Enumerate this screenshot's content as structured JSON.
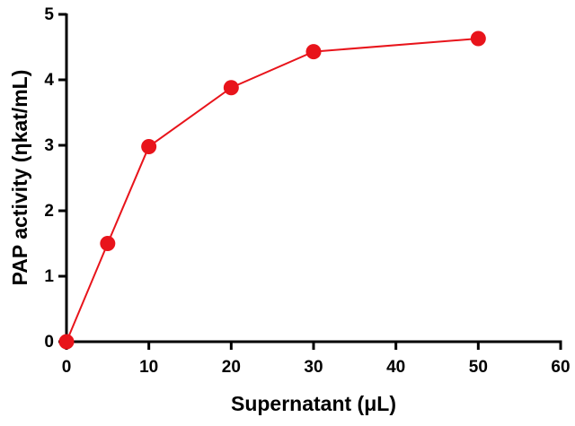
{
  "chart_data": {
    "type": "line",
    "x_label": "Supernatant (μL)",
    "y_label": "PAP activity (ηkat/mL)",
    "series": [
      {
        "color": "#e8141b",
        "x": [
          0,
          5,
          10,
          20,
          30,
          50
        ],
        "values": [
          0,
          1.5,
          2.98,
          3.88,
          4.43,
          4.63
        ]
      }
    ],
    "xlim": [
      0,
      60
    ],
    "xticks": [
      0,
      10,
      20,
      30,
      40,
      50,
      60
    ],
    "ylim": [
      0,
      5
    ],
    "yticks": [
      0,
      1,
      2,
      3,
      4,
      5
    ]
  }
}
